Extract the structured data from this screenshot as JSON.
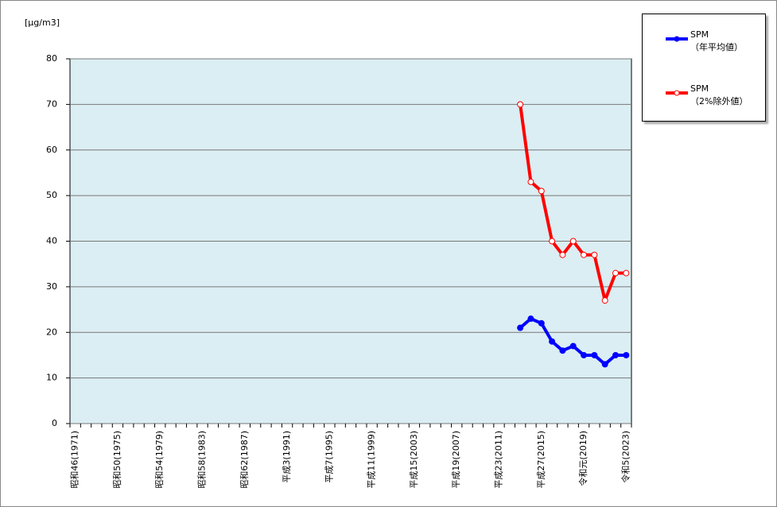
{
  "chart_data": {
    "type": "line",
    "y_label": "[μg/m3]",
    "categories": [
      "昭和46(1971)",
      null,
      null,
      null,
      "昭和50(1975)",
      null,
      null,
      null,
      "昭和54(1979)",
      null,
      null,
      null,
      "昭和58(1983)",
      null,
      null,
      null,
      "昭和62(1987)",
      null,
      null,
      null,
      "平成3(1991)",
      null,
      null,
      null,
      "平成7(1995)",
      null,
      null,
      null,
      "平成11(1999)",
      null,
      null,
      null,
      "平成15(2003)",
      null,
      null,
      null,
      "平成19(2007)",
      null,
      null,
      null,
      "平成23(2011)",
      null,
      null,
      null,
      "平成27(2015)",
      null,
      null,
      null,
      "令和元(2019)",
      null,
      null,
      null,
      "令和5(2023)"
    ],
    "series": [
      {
        "name": "SPM\n（年平均値）",
        "color": "#0000ff",
        "marker": "filled",
        "values": [
          null,
          null,
          null,
          null,
          null,
          null,
          null,
          null,
          null,
          null,
          null,
          null,
          null,
          null,
          null,
          null,
          null,
          null,
          null,
          null,
          null,
          null,
          null,
          null,
          null,
          null,
          null,
          null,
          null,
          null,
          null,
          null,
          null,
          null,
          null,
          null,
          null,
          null,
          null,
          null,
          null,
          null,
          21,
          23,
          22,
          18,
          16,
          17,
          15,
          15,
          13,
          15,
          15
        ]
      },
      {
        "name": "SPM\n（2%除外値）",
        "color": "#ff0000",
        "marker": "hollow",
        "values": [
          null,
          null,
          null,
          null,
          null,
          null,
          null,
          null,
          null,
          null,
          null,
          null,
          null,
          null,
          null,
          null,
          null,
          null,
          null,
          null,
          null,
          null,
          null,
          null,
          null,
          null,
          null,
          null,
          null,
          null,
          null,
          null,
          null,
          null,
          null,
          null,
          null,
          null,
          null,
          null,
          null,
          null,
          70,
          53,
          51,
          40,
          37,
          40,
          37,
          37,
          27,
          33,
          33
        ]
      }
    ],
    "ylim": [
      0,
      80
    ],
    "yticks": [
      0,
      10,
      20,
      30,
      40,
      50,
      60,
      70,
      80
    ],
    "grid": true,
    "legend": "top-right"
  }
}
